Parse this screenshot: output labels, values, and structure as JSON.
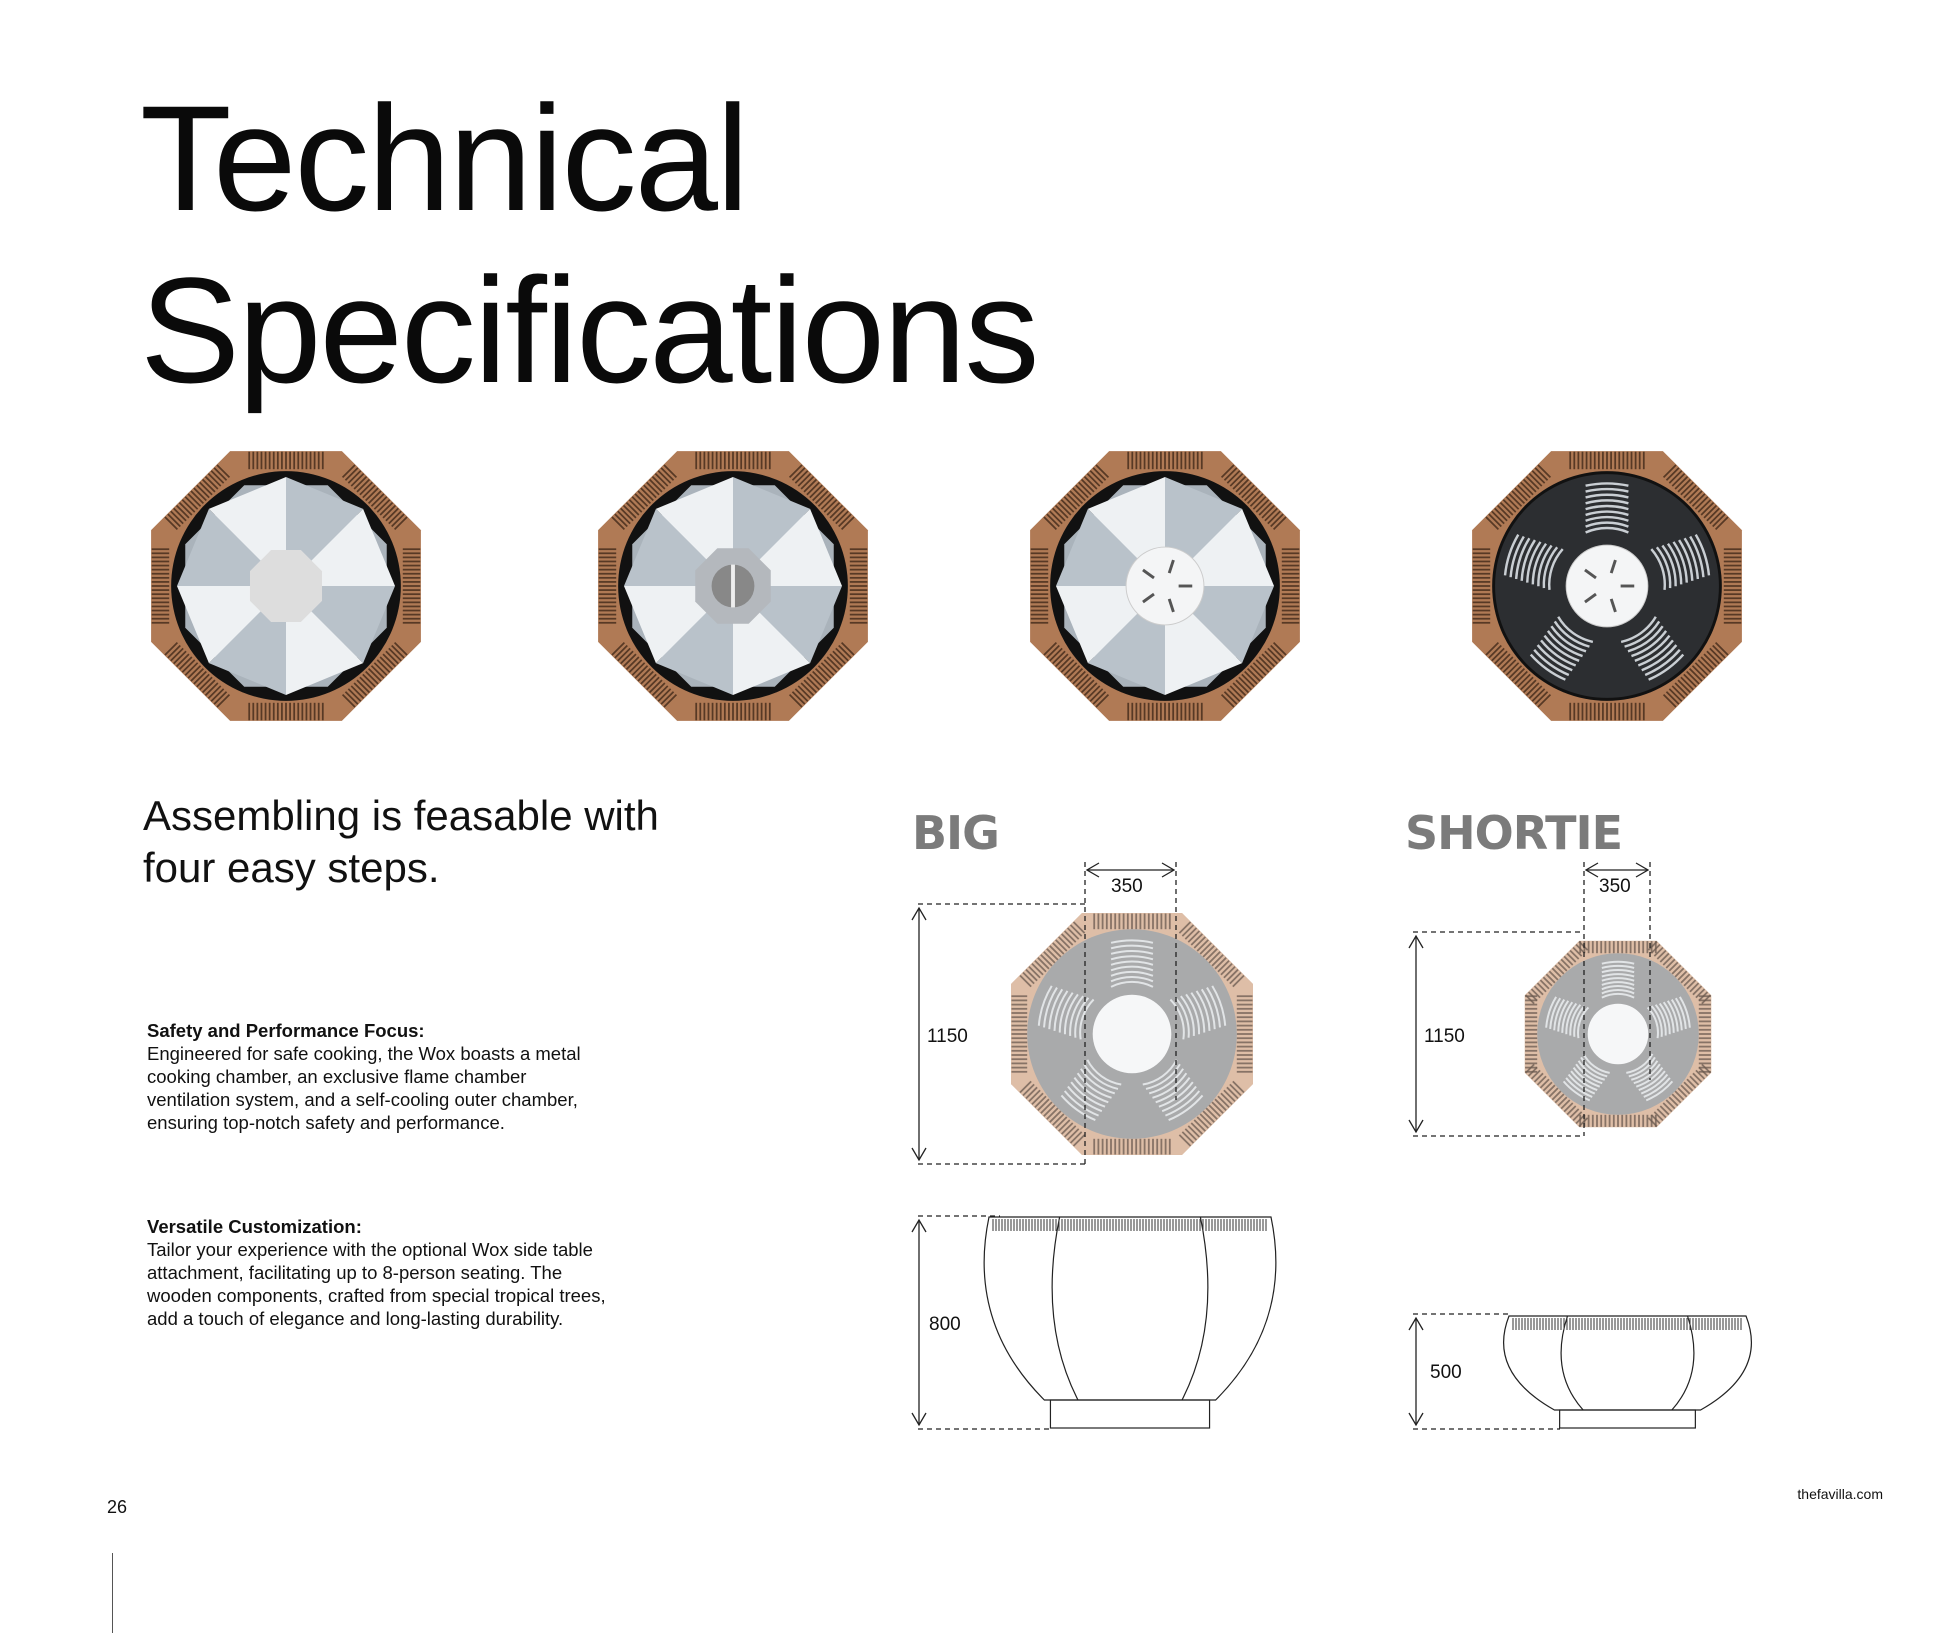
{
  "title": {
    "line1": "Technical",
    "line2": "Specifications"
  },
  "steps": [
    {
      "icon": "fire-pit-step-1-icon"
    },
    {
      "icon": "fire-pit-step-2-icon"
    },
    {
      "icon": "fire-pit-step-3-icon"
    },
    {
      "icon": "fire-pit-step-4-icon"
    }
  ],
  "lead": {
    "line1": "Assembling is feasable with",
    "line2": "four easy steps."
  },
  "sections": [
    {
      "heading": "Safety and Performance Focus:",
      "body": "Engineered for safe cooking, the Wox boasts a metal cooking chamber, an exclusive flame chamber ventilation system, and a self-cooling outer chamber, ensuring top-notch safety and performance."
    },
    {
      "heading": "Versatile Customization:",
      "body": "Tailor your experience with the optional Wox side table attachment, facilitating up to 8-person seating. The wooden components, crafted from special tropical trees, add a touch of elegance and long-lasting durability."
    }
  ],
  "models": [
    {
      "name": "BIG",
      "width": "350",
      "diameter": "1150",
      "height": "800"
    },
    {
      "name": "SHORTIE",
      "width": "350",
      "diameter": "1150",
      "height": "500"
    }
  ],
  "colors": {
    "copper": "#b07a55",
    "steel": "#c8d0d6",
    "model_label": "#7b7b7b",
    "dark_grate": "#2c2e31"
  },
  "footer": {
    "page_number": "26",
    "website": "thefavilla.com"
  }
}
